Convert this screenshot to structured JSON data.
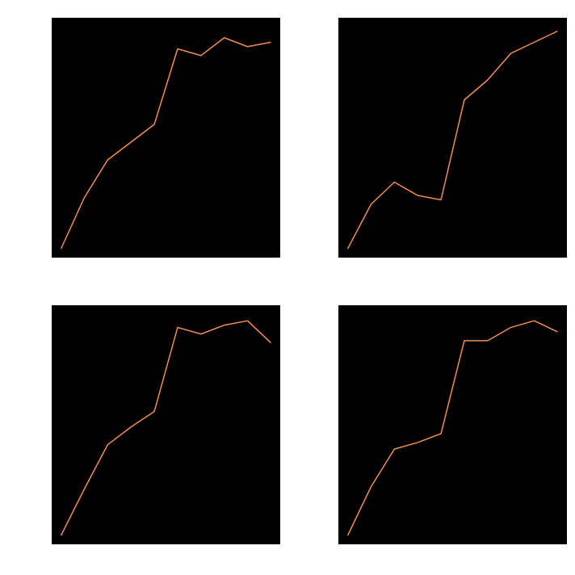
{
  "chart_data": [
    {
      "type": "line",
      "title": "",
      "xlabel": "",
      "ylabel": "",
      "xlim": [
        -0.4,
        9.4
      ],
      "ylim": [
        -0.04,
        1.04
      ],
      "grid": false,
      "background": "#000000",
      "x": [
        0,
        1,
        2,
        3,
        4,
        5,
        6,
        7,
        8,
        9
      ],
      "series": [
        {
          "color": "#f28e52",
          "values": [
            0.0,
            0.23,
            0.4,
            0.48,
            0.56,
            0.9,
            0.87,
            0.95,
            0.91,
            0.93
          ]
        }
      ]
    },
    {
      "type": "line",
      "title": "",
      "xlabel": "",
      "ylabel": "",
      "xlim": [
        -0.4,
        9.4
      ],
      "ylim": [
        -0.04,
        1.04
      ],
      "grid": false,
      "background": "#000000",
      "x": [
        0,
        1,
        2,
        3,
        4,
        5,
        6,
        7,
        8,
        9
      ],
      "series": [
        {
          "color": "#f28e52",
          "values": [
            0.0,
            0.2,
            0.3,
            0.24,
            0.22,
            0.67,
            0.76,
            0.88,
            0.93,
            0.98
          ]
        }
      ]
    },
    {
      "type": "line",
      "title": "",
      "xlabel": "",
      "ylabel": "",
      "xlim": [
        -0.4,
        9.4
      ],
      "ylim": [
        -0.04,
        1.04
      ],
      "grid": false,
      "background": "#000000",
      "x": [
        0,
        1,
        2,
        3,
        4,
        5,
        6,
        7,
        8,
        9
      ],
      "series": [
        {
          "color": "#f28e52",
          "values": [
            0.0,
            0.21,
            0.41,
            0.49,
            0.56,
            0.94,
            0.91,
            0.95,
            0.97,
            0.87
          ]
        }
      ]
    },
    {
      "type": "line",
      "title": "",
      "xlabel": "",
      "ylabel": "",
      "xlim": [
        -0.4,
        9.4
      ],
      "ylim": [
        -0.04,
        1.04
      ],
      "grid": false,
      "background": "#000000",
      "x": [
        0,
        1,
        2,
        3,
        4,
        5,
        6,
        7,
        8,
        9
      ],
      "series": [
        {
          "color": "#f28e52",
          "values": [
            0.0,
            0.22,
            0.39,
            0.42,
            0.46,
            0.88,
            0.88,
            0.94,
            0.97,
            0.92
          ]
        }
      ]
    }
  ]
}
